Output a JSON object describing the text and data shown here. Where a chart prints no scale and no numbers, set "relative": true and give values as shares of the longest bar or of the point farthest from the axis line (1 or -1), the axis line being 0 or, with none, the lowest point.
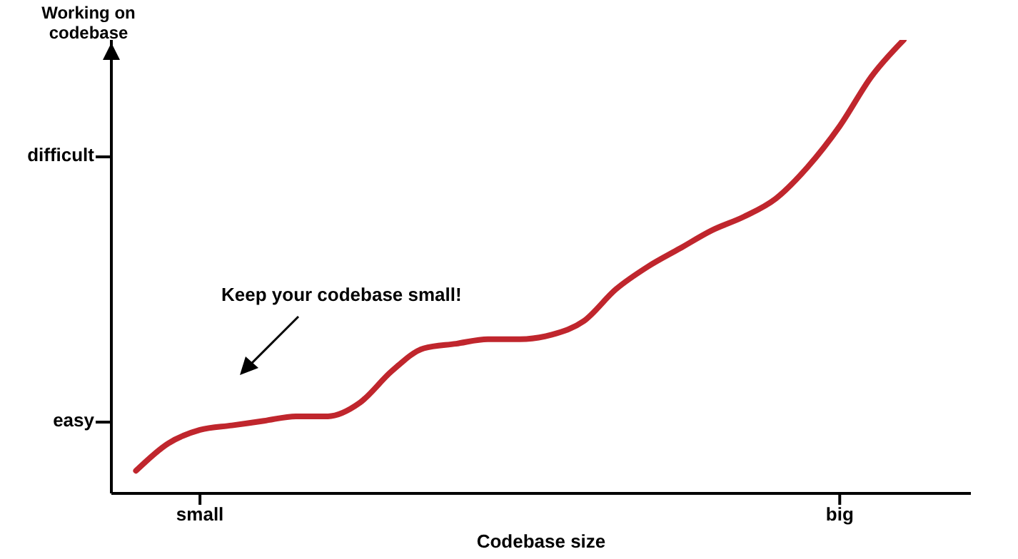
{
  "chart_data": {
    "type": "line",
    "xlabel": "Codebase size",
    "ylabel": "Working on codebase",
    "relative": true,
    "categories": [
      null,
      null,
      "small",
      null,
      null,
      null,
      null,
      null,
      null,
      null,
      null,
      null,
      null,
      null,
      null,
      null,
      null,
      null,
      null,
      null,
      null,
      null,
      "big",
      null,
      null
    ],
    "series": [
      {
        "color": "#c0262d",
        "values": [
          0.05,
          0.11,
          0.14,
          0.15,
          0.16,
          0.17,
          0.17,
          0.2,
          0.27,
          0.32,
          0.33,
          0.34,
          0.34,
          0.35,
          0.38,
          0.45,
          0.5,
          0.54,
          0.58,
          0.61,
          0.65,
          0.72,
          0.81,
          0.92,
          1
        ]
      }
    ],
    "line_style": "solid",
    "annotations": [
      "easy",
      "difficult",
      "Keep your codebase small!"
    ]
  }
}
